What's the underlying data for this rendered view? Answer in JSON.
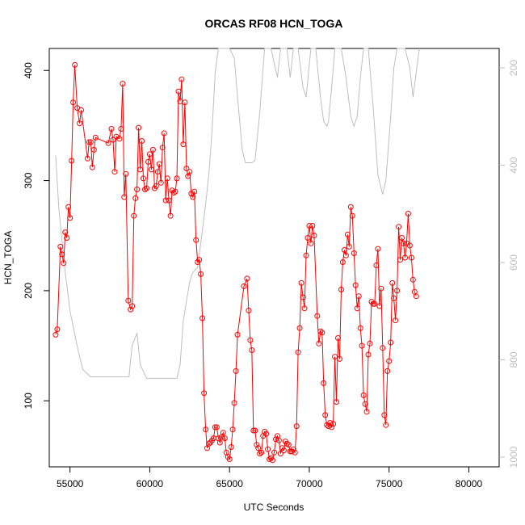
{
  "chart_data": {
    "type": "line",
    "title": "ORCAS RF08 HCN_TOGA",
    "xlabel": "UTC Seconds",
    "ylabel": "HCN_TOGA",
    "xlim": [
      53700,
      81900
    ],
    "ylim": [
      40,
      420
    ],
    "y2lim": [
      1020,
      160
    ],
    "xticks": [
      55000,
      60000,
      65000,
      70000,
      75000,
      80000
    ],
    "yticks": [
      100,
      200,
      300,
      400
    ],
    "y2ticks": [
      200,
      400,
      600,
      800,
      1000
    ],
    "grid": false,
    "colors": {
      "hcn": "#ff0000",
      "secondary": "#bebebe"
    },
    "series": [
      {
        "values_xy": [
          [
            54100,
            160
          ],
          [
            54200,
            165
          ],
          [
            54400,
            240
          ],
          [
            54500,
            233
          ],
          [
            54600,
            225
          ],
          [
            54700,
            253
          ],
          [
            54800,
            248
          ],
          [
            54900,
            276
          ],
          [
            55000,
            266
          ],
          [
            55100,
            318
          ],
          [
            55200,
            371
          ],
          [
            55300,
            405
          ],
          [
            55450,
            366
          ],
          [
            55600,
            352
          ],
          [
            55700,
            364
          ],
          [
            56100,
            320
          ],
          [
            56200,
            335
          ],
          [
            56300,
            335
          ],
          [
            56400,
            312
          ],
          [
            56500,
            328
          ],
          [
            56600,
            339
          ],
          [
            57400,
            334
          ],
          [
            57600,
            347
          ],
          [
            57700,
            337
          ],
          [
            57800,
            308
          ],
          [
            57900,
            340
          ],
          [
            58100,
            338
          ],
          [
            58200,
            347
          ],
          [
            58300,
            388
          ],
          [
            58400,
            285
          ],
          [
            58500,
            306
          ],
          [
            58650,
            191
          ],
          [
            58800,
            183
          ],
          [
            58900,
            186
          ],
          [
            59000,
            268
          ],
          [
            59100,
            284
          ],
          [
            59200,
            292
          ],
          [
            59300,
            348
          ],
          [
            59400,
            310
          ],
          [
            59500,
            336
          ],
          [
            59600,
            302
          ],
          [
            59700,
            292
          ],
          [
            59800,
            293
          ],
          [
            59900,
            317
          ],
          [
            60000,
            324
          ],
          [
            60100,
            310
          ],
          [
            60200,
            328
          ],
          [
            60300,
            293
          ],
          [
            60400,
            295
          ],
          [
            60500,
            308
          ],
          [
            60600,
            315
          ],
          [
            60700,
            298
          ],
          [
            60800,
            330
          ],
          [
            60900,
            343
          ],
          [
            61000,
            282
          ],
          [
            61100,
            302
          ],
          [
            61200,
            282
          ],
          [
            61300,
            268
          ],
          [
            61400,
            291
          ],
          [
            61500,
            289
          ],
          [
            61600,
            290
          ],
          [
            61700,
            302
          ],
          [
            61800,
            381
          ],
          [
            61900,
            372
          ],
          [
            62000,
            392
          ],
          [
            62100,
            333
          ],
          [
            62200,
            371
          ],
          [
            62300,
            311
          ],
          [
            62400,
            304
          ],
          [
            62500,
            308
          ],
          [
            62600,
            288
          ],
          [
            62700,
            285
          ],
          [
            62800,
            290
          ],
          [
            62900,
            246
          ],
          [
            63000,
            226
          ],
          [
            63100,
            228
          ],
          [
            63200,
            215
          ],
          [
            63300,
            175
          ],
          [
            63400,
            107
          ],
          [
            63500,
            74
          ],
          [
            63600,
            57
          ],
          [
            63700,
            61
          ],
          [
            63800,
            62
          ],
          [
            63900,
            64
          ],
          [
            64000,
            66
          ],
          [
            64100,
            76
          ],
          [
            64200,
            76
          ],
          [
            64300,
            66
          ],
          [
            64400,
            62
          ],
          [
            64500,
            67
          ],
          [
            64600,
            71
          ],
          [
            64700,
            66
          ],
          [
            64800,
            53
          ],
          [
            64900,
            49
          ],
          [
            65000,
            47
          ],
          [
            65100,
            58
          ],
          [
            65200,
            74
          ],
          [
            65300,
            98
          ],
          [
            65400,
            127
          ],
          [
            65500,
            160
          ],
          [
            65900,
            204
          ],
          [
            66100,
            211
          ],
          [
            66200,
            182
          ],
          [
            66300,
            155
          ],
          [
            66400,
            146
          ],
          [
            66500,
            73
          ],
          [
            66600,
            73
          ],
          [
            66700,
            60
          ],
          [
            66800,
            57
          ],
          [
            66900,
            52
          ],
          [
            67000,
            53
          ],
          [
            67100,
            68
          ],
          [
            67200,
            72
          ],
          [
            67300,
            70
          ],
          [
            67400,
            56
          ],
          [
            67500,
            47
          ],
          [
            67600,
            48
          ],
          [
            67700,
            46
          ],
          [
            67800,
            53
          ],
          [
            67900,
            65
          ],
          [
            68000,
            68
          ],
          [
            68100,
            64
          ],
          [
            68200,
            52
          ],
          [
            68300,
            57
          ],
          [
            68400,
            55
          ],
          [
            68500,
            63
          ],
          [
            68600,
            61
          ],
          [
            68700,
            60
          ],
          [
            68800,
            54
          ],
          [
            68900,
            54
          ],
          [
            69000,
            56
          ],
          [
            69100,
            53
          ],
          [
            69200,
            77
          ],
          [
            69300,
            144
          ],
          [
            69400,
            166
          ],
          [
            69500,
            207
          ],
          [
            69600,
            194
          ],
          [
            69700,
            184
          ],
          [
            69800,
            232
          ],
          [
            69900,
            248
          ],
          [
            70000,
            259
          ],
          [
            70100,
            243
          ],
          [
            70200,
            259
          ],
          [
            70300,
            250
          ],
          [
            70500,
            177
          ],
          [
            70600,
            152
          ],
          [
            70700,
            163
          ],
          [
            70800,
            162
          ],
          [
            70900,
            116
          ],
          [
            71000,
            87
          ],
          [
            71100,
            78
          ],
          [
            71200,
            77
          ],
          [
            71300,
            80
          ],
          [
            71400,
            76
          ],
          [
            71500,
            79
          ],
          [
            71600,
            140
          ],
          [
            71700,
            99
          ],
          [
            71800,
            157
          ],
          [
            71900,
            138
          ],
          [
            72000,
            201
          ],
          [
            72100,
            226
          ],
          [
            72200,
            237
          ],
          [
            72300,
            232
          ],
          [
            72400,
            251
          ],
          [
            72500,
            240
          ],
          [
            72600,
            276
          ],
          [
            72700,
            268
          ],
          [
            72800,
            234
          ],
          [
            72900,
            205
          ],
          [
            73000,
            184
          ],
          [
            73100,
            195
          ],
          [
            73200,
            166
          ],
          [
            73300,
            150
          ],
          [
            73400,
            105
          ],
          [
            73500,
            97
          ],
          [
            73600,
            90
          ],
          [
            73700,
            142
          ],
          [
            73800,
            152
          ],
          [
            73900,
            190
          ],
          [
            74000,
            188
          ],
          [
            74100,
            188
          ],
          [
            74200,
            223
          ],
          [
            74300,
            238
          ],
          [
            74400,
            186
          ],
          [
            74500,
            202
          ],
          [
            74600,
            148
          ],
          [
            74700,
            87
          ],
          [
            74800,
            78
          ],
          [
            74900,
            127
          ],
          [
            75000,
            136
          ],
          [
            75100,
            153
          ],
          [
            75200,
            207
          ],
          [
            75300,
            193
          ],
          [
            75400,
            173
          ],
          [
            75500,
            200
          ],
          [
            75600,
            258
          ],
          [
            75700,
            228
          ],
          [
            75800,
            248
          ],
          [
            75900,
            243
          ],
          [
            76000,
            230
          ],
          [
            76100,
            243
          ],
          [
            76200,
            270
          ],
          [
            76300,
            241
          ],
          [
            76400,
            230
          ],
          [
            76500,
            210
          ],
          [
            76600,
            199
          ],
          [
            76700,
            195
          ]
        ]
      },
      {
        "values_xy_y2": [
          [
            54100,
            380
          ],
          [
            54300,
            490
          ],
          [
            54700,
            620
          ],
          [
            55000,
            700
          ],
          [
            55500,
            780
          ],
          [
            55800,
            820
          ],
          [
            56300,
            835
          ],
          [
            58700,
            835
          ],
          [
            58800,
            800
          ],
          [
            58900,
            770
          ],
          [
            59200,
            745
          ],
          [
            59400,
            810
          ],
          [
            59800,
            838
          ],
          [
            61700,
            838
          ],
          [
            61900,
            810
          ],
          [
            62100,
            720
          ],
          [
            62500,
            640
          ],
          [
            62700,
            620
          ],
          [
            63000,
            610
          ],
          [
            63200,
            560
          ],
          [
            63500,
            480
          ],
          [
            63700,
            420
          ],
          [
            63900,
            330
          ],
          [
            64100,
            210
          ],
          [
            64300,
            160
          ],
          [
            64600,
            160
          ],
          [
            65000,
            160
          ],
          [
            65300,
            180
          ],
          [
            65500,
            260
          ],
          [
            65800,
            370
          ],
          [
            66000,
            395
          ],
          [
            66400,
            395
          ],
          [
            66600,
            390
          ],
          [
            66900,
            290
          ],
          [
            67200,
            160
          ],
          [
            67600,
            160
          ],
          [
            68000,
            220
          ],
          [
            68200,
            160
          ],
          [
            68600,
            160
          ],
          [
            68800,
            220
          ],
          [
            69000,
            160
          ],
          [
            69300,
            160
          ],
          [
            69600,
            240
          ],
          [
            69800,
            260
          ],
          [
            70100,
            160
          ],
          [
            70400,
            160
          ],
          [
            70700,
            260
          ],
          [
            70900,
            310
          ],
          [
            71100,
            320
          ],
          [
            71200,
            310
          ],
          [
            71400,
            240
          ],
          [
            71600,
            160
          ],
          [
            72000,
            160
          ],
          [
            72300,
            220
          ],
          [
            72600,
            300
          ],
          [
            72800,
            320
          ],
          [
            73000,
            300
          ],
          [
            73200,
            220
          ],
          [
            73400,
            160
          ],
          [
            73700,
            160
          ],
          [
            74000,
            280
          ],
          [
            74300,
            420
          ],
          [
            74600,
            460
          ],
          [
            74800,
            430
          ],
          [
            75100,
            300
          ],
          [
            75300,
            200
          ],
          [
            75500,
            160
          ],
          [
            76000,
            160
          ],
          [
            76300,
            200
          ],
          [
            76500,
            260
          ],
          [
            76900,
            160
          ]
        ]
      }
    ]
  }
}
